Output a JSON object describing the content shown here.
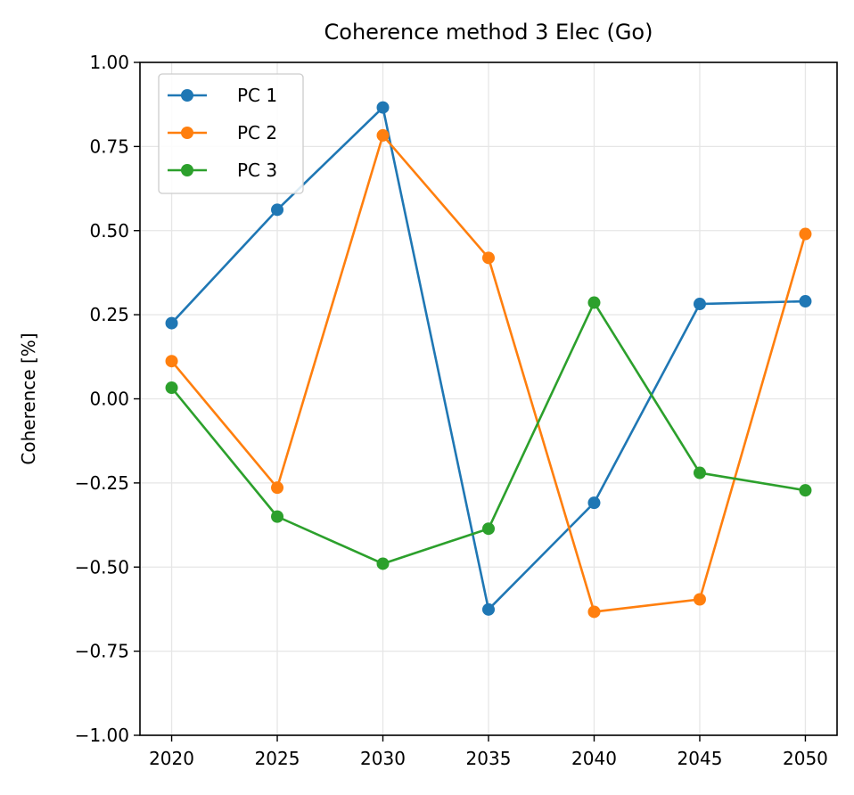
{
  "chart_data": {
    "type": "line",
    "title": "Coherence method 3 Elec (Go)",
    "xlabel": "",
    "ylabel": "Coherence [%]",
    "x": [
      2020,
      2025,
      2030,
      2035,
      2040,
      2045,
      2050
    ],
    "x_tick_labels": [
      "2020",
      "2025",
      "2030",
      "2035",
      "2040",
      "2045",
      "2050"
    ],
    "xlim": [
      2018.5,
      2051.5
    ],
    "ylim": [
      -1.0,
      1.0
    ],
    "y_ticks": [
      -1.0,
      -0.75,
      -0.5,
      -0.25,
      0.0,
      0.25,
      0.5,
      0.75,
      1.0
    ],
    "y_tick_labels": [
      "−1.00",
      "−0.75",
      "−0.50",
      "−0.25",
      "0.00",
      "0.25",
      "0.50",
      "0.75",
      "1.00"
    ],
    "grid": true,
    "legend_position": "top-left",
    "series": [
      {
        "name": "PC 1",
        "color": "#1f77b4",
        "values": [
          0.225,
          0.562,
          0.866,
          -0.626,
          -0.309,
          0.282,
          0.29
        ]
      },
      {
        "name": "PC 2",
        "color": "#ff7f0e",
        "values": [
          0.112,
          -0.264,
          0.783,
          0.419,
          -0.633,
          -0.596,
          0.49
        ]
      },
      {
        "name": "PC 3",
        "color": "#2ca02c",
        "values": [
          0.033,
          -0.35,
          -0.49,
          -0.386,
          0.286,
          -0.22,
          -0.272
        ]
      }
    ]
  }
}
